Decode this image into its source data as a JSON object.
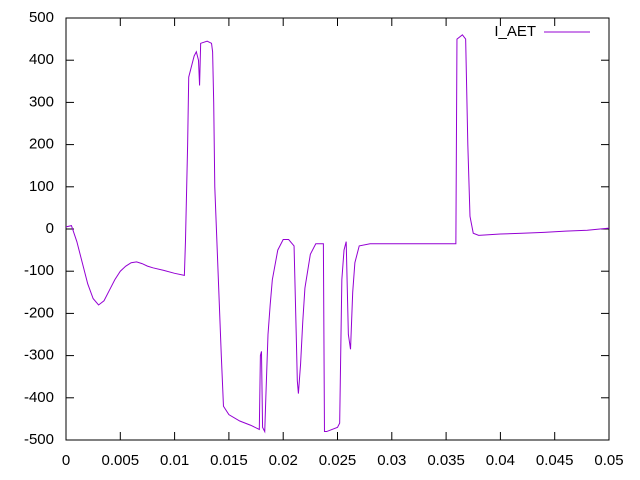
{
  "chart_data": {
    "type": "line",
    "x": [
      0,
      0.0005,
      0.001,
      0.0015,
      0.002,
      0.0025,
      0.003,
      0.0035,
      0.004,
      0.0045,
      0.005,
      0.0055,
      0.006,
      0.0065,
      0.007,
      0.0075,
      0.008,
      0.009,
      0.01,
      0.0109,
      0.011,
      0.0112,
      0.0113,
      0.0115,
      0.0118,
      0.012,
      0.0122,
      0.0123,
      0.0124,
      0.013,
      0.0134,
      0.0135,
      0.0136,
      0.0137,
      0.014,
      0.0143,
      0.0145,
      0.015,
      0.016,
      0.017,
      0.0178,
      0.0179,
      0.018,
      0.0181,
      0.0183,
      0.0184,
      0.0186,
      0.0188,
      0.019,
      0.0195,
      0.02,
      0.0205,
      0.021,
      0.0212,
      0.0213,
      0.0214,
      0.0216,
      0.0218,
      0.022,
      0.0225,
      0.023,
      0.0237,
      0.0238,
      0.024,
      0.025,
      0.0252,
      0.0254,
      0.0256,
      0.0258,
      0.026,
      0.0262,
      0.0264,
      0.0266,
      0.027,
      0.028,
      0.03,
      0.032,
      0.034,
      0.0359,
      0.036,
      0.0365,
      0.0368,
      0.037,
      0.0372,
      0.0375,
      0.038,
      0.04,
      0.042,
      0.044,
      0.046,
      0.048,
      0.05
    ],
    "series": [
      {
        "name": "I_AET",
        "color": "#9400d3",
        "values": [
          5,
          8,
          -30,
          -80,
          -130,
          -165,
          -180,
          -170,
          -145,
          -120,
          -100,
          -88,
          -80,
          -78,
          -82,
          -88,
          -92,
          -98,
          -105,
          -110,
          -30,
          200,
          360,
          380,
          410,
          420,
          400,
          340,
          440,
          445,
          440,
          420,
          300,
          100,
          -100,
          -300,
          -420,
          -440,
          -455,
          -465,
          -475,
          -300,
          -290,
          -470,
          -480,
          -400,
          -250,
          -180,
          -120,
          -50,
          -25,
          -25,
          -40,
          -250,
          -360,
          -390,
          -320,
          -220,
          -140,
          -60,
          -35,
          -35,
          -480,
          -480,
          -470,
          -460,
          -120,
          -50,
          -30,
          -250,
          -285,
          -150,
          -80,
          -40,
          -35,
          -35,
          -35,
          -35,
          -35,
          450,
          460,
          450,
          200,
          30,
          -10,
          -15,
          -12,
          -10,
          -8,
          -5,
          -3,
          2
        ]
      }
    ],
    "xlim": [
      0,
      0.05
    ],
    "xticks": [
      0,
      0.005,
      0.01,
      0.015,
      0.02,
      0.025,
      0.03,
      0.035,
      0.04,
      0.045,
      0.05
    ],
    "ylim": [
      -500,
      500
    ],
    "yticks": [
      -500,
      -400,
      -300,
      -200,
      -100,
      0,
      100,
      200,
      300,
      400,
      500
    ],
    "legend": "top-right"
  }
}
